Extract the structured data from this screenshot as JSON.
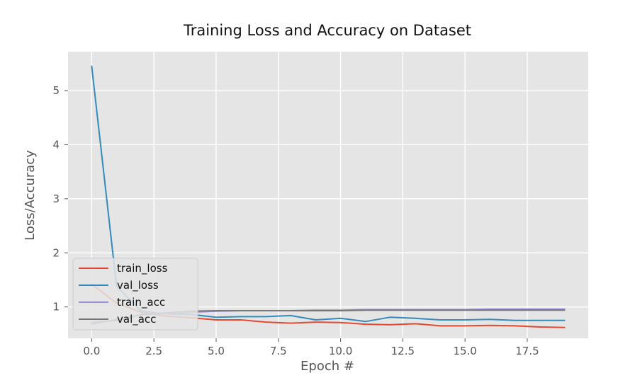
{
  "chart_data": {
    "type": "line",
    "title": "Training Loss and Accuracy on Dataset",
    "xlabel": "Epoch #",
    "ylabel": "Loss/Accuracy",
    "xlim": [
      -0.95,
      19.95
    ],
    "ylim": [
      0.42,
      5.72
    ],
    "xticks": [
      0,
      2.5,
      5,
      7.5,
      10,
      12.5,
      15,
      17.5
    ],
    "xtick_labels": [
      "0.0",
      "2.5",
      "5.0",
      "7.5",
      "10.0",
      "12.5",
      "15.0",
      "17.5"
    ],
    "yticks": [
      1,
      2,
      3,
      4,
      5
    ],
    "ytick_labels": [
      "1",
      "2",
      "3",
      "4",
      "5"
    ],
    "grid": true,
    "legend_position": "lower-left",
    "x": [
      0,
      1,
      2,
      3,
      4,
      5,
      6,
      7,
      8,
      9,
      10,
      11,
      12,
      13,
      14,
      15,
      16,
      17,
      18,
      19
    ],
    "series": [
      {
        "name": "train_loss",
        "color": "#E24A33",
        "values": [
          1.42,
          1.07,
          0.9,
          0.83,
          0.8,
          0.76,
          0.76,
          0.72,
          0.7,
          0.72,
          0.71,
          0.68,
          0.67,
          0.69,
          0.65,
          0.65,
          0.66,
          0.65,
          0.63,
          0.62
        ]
      },
      {
        "name": "val_loss",
        "color": "#348ABD",
        "values": [
          5.45,
          1.38,
          0.92,
          0.87,
          0.86,
          0.81,
          0.82,
          0.82,
          0.84,
          0.76,
          0.79,
          0.73,
          0.81,
          0.79,
          0.76,
          0.76,
          0.77,
          0.75,
          0.75,
          0.75
        ]
      },
      {
        "name": "train_acc",
        "color": "#988ED5",
        "values": [
          0.68,
          0.77,
          0.85,
          0.88,
          0.9,
          0.92,
          0.93,
          0.93,
          0.93,
          0.94,
          0.94,
          0.95,
          0.95,
          0.95,
          0.95,
          0.95,
          0.96,
          0.96,
          0.96,
          0.96
        ]
      },
      {
        "name": "val_acc",
        "color": "#777777",
        "values": [
          0.71,
          0.75,
          0.86,
          0.89,
          0.92,
          0.93,
          0.93,
          0.93,
          0.93,
          0.93,
          0.93,
          0.94,
          0.94,
          0.94,
          0.94,
          0.94,
          0.94,
          0.94,
          0.94,
          0.94
        ]
      }
    ]
  }
}
